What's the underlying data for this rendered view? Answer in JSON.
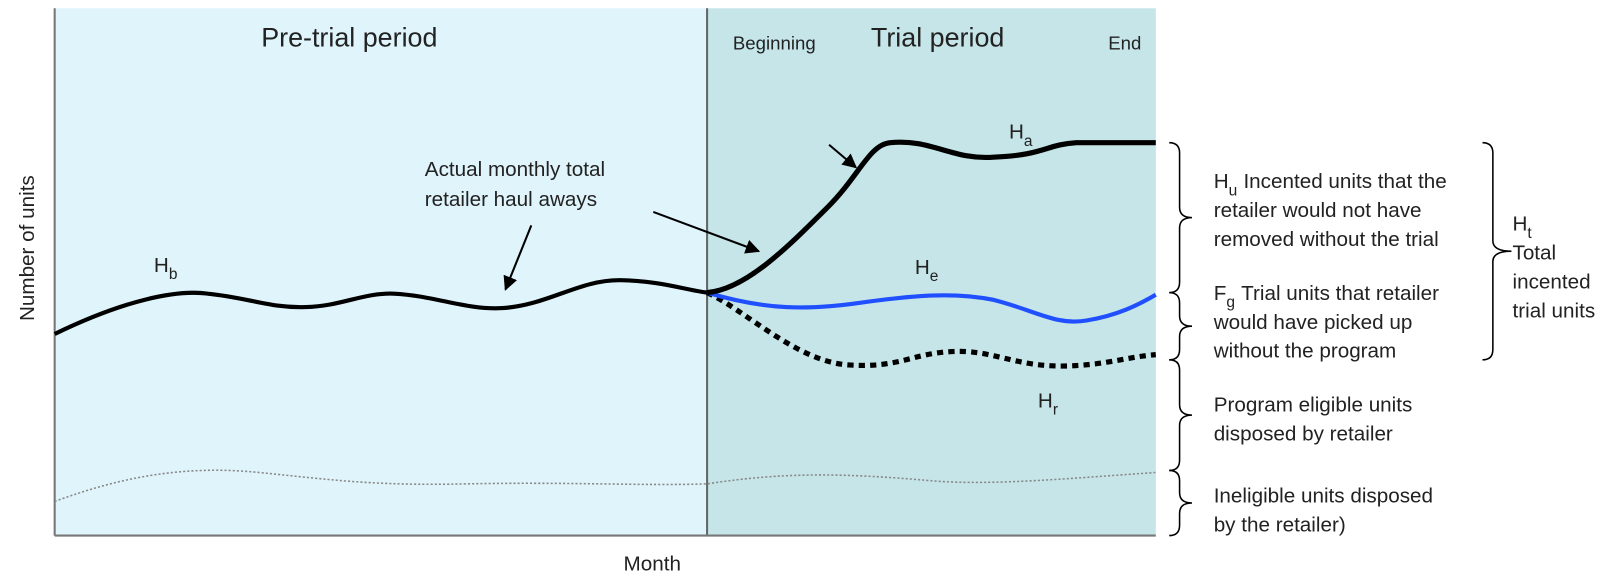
{
  "header": {
    "pre_trial": "Pre-trial period",
    "trial": "Trial period",
    "beginning": "Beginning",
    "end": "End"
  },
  "axes": {
    "y": "Number of units",
    "x": "Month"
  },
  "annotation": [
    "Actual monthly total",
    "retailer haul aways"
  ],
  "curve_labels": {
    "hb": {
      "main": "H",
      "sub": "b"
    },
    "ha": {
      "main": "H",
      "sub": "a"
    },
    "he": {
      "main": "H",
      "sub": "e"
    },
    "hr": {
      "main": "H",
      "sub": "r"
    }
  },
  "brackets": [
    {
      "symbol": {
        "main": "H",
        "sub": "u"
      },
      "lines": [
        "Incented units that the",
        "retailer would not have",
        "removed without the trial"
      ]
    },
    {
      "symbol": {
        "main": "F",
        "sub": "g"
      },
      "lines": [
        "Trial units that retailer",
        "would have picked up",
        "without the program"
      ]
    },
    {
      "lines": [
        "Program eligible units",
        "disposed by retailer"
      ]
    },
    {
      "lines": [
        "Ineligible units disposed",
        "by the retailer)"
      ]
    }
  ],
  "total": {
    "symbol": {
      "main": "H",
      "sub": "t"
    },
    "lines": [
      "Total",
      "incented",
      "trial units"
    ]
  }
}
